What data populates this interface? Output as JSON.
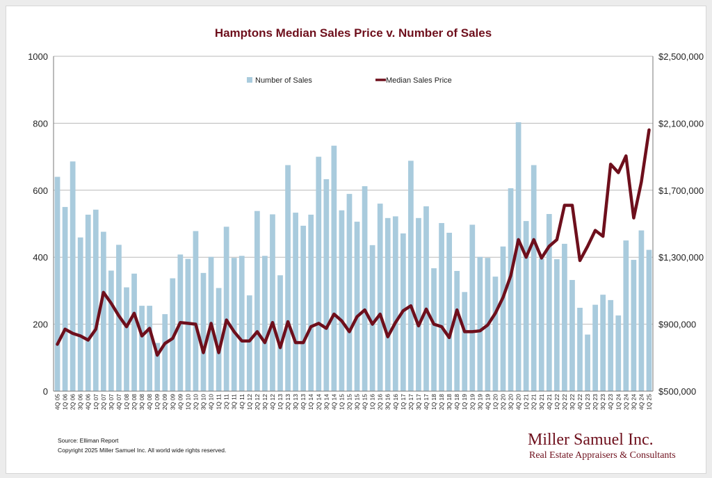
{
  "chart_data": {
    "type": "bar",
    "title": "Hamptons Median Sales Price v. Number of Sales",
    "xlabel": "",
    "ylabel": "",
    "y2label": "",
    "categories": [
      "4Q 05",
      "1Q 06",
      "2Q 06",
      "3Q 06",
      "4Q 06",
      "1Q 07",
      "2Q 07",
      "3Q 07",
      "4Q 07",
      "1Q 08",
      "2Q 08",
      "3Q 08",
      "4Q 08",
      "1Q 09",
      "2Q 09",
      "3Q 09",
      "4Q 09",
      "1Q 10",
      "2Q 10",
      "3Q 10",
      "4Q 10",
      "1Q 11",
      "2Q 11",
      "3Q 11",
      "4Q 11",
      "1Q 12",
      "2Q 12",
      "3Q 12",
      "4Q 12",
      "1Q 13",
      "2Q 13",
      "3Q 13",
      "4Q 13",
      "1Q 14",
      "2Q 14",
      "3Q 14",
      "4Q 14",
      "1Q 15",
      "2Q 15",
      "3Q 15",
      "4Q 15",
      "1Q 16",
      "2Q 16",
      "3Q 16",
      "4Q 16",
      "1Q 17",
      "2Q 17",
      "3Q 17",
      "4Q 17",
      "1Q 18",
      "2Q 18",
      "3Q 18",
      "4Q 18",
      "1Q 19",
      "2Q 19",
      "3Q 19",
      "4Q 19",
      "1Q 20",
      "2Q 20",
      "3Q 20",
      "4Q 20",
      "1Q 21",
      "2Q 21",
      "3Q 21",
      "4Q 21",
      "1Q 22",
      "2Q 22",
      "3Q 22",
      "4Q 22",
      "1Q 23",
      "2Q 23",
      "3Q 23",
      "4Q 23",
      "1Q 24",
      "2Q 24",
      "3Q 24",
      "4Q 24",
      "1Q 25"
    ],
    "series": [
      {
        "name": "Number of Sales",
        "type": "bar",
        "axis": "left",
        "color": "#a9cbdd",
        "values": [
          640,
          550,
          686,
          459,
          527,
          542,
          476,
          360,
          437,
          310,
          351,
          255,
          255,
          144,
          230,
          337,
          408,
          395,
          478,
          353,
          401,
          308,
          491,
          398,
          404,
          286,
          538,
          404,
          528,
          346,
          675,
          533,
          494,
          527,
          700,
          633,
          733,
          540,
          589,
          506,
          612,
          436,
          560,
          517,
          522,
          471,
          688,
          517,
          552,
          367,
          502,
          473,
          359,
          296,
          497,
          401,
          398,
          342,
          432,
          606,
          803,
          508,
          675,
          396,
          529,
          394,
          440,
          332,
          249,
          169,
          258,
          288,
          272,
          226,
          450,
          392,
          480,
          422
        ]
      },
      {
        "name": "Median Sales Price",
        "type": "line",
        "axis": "right",
        "color": "#6e0f1c",
        "values": [
          780000,
          870000,
          845000,
          830000,
          805000,
          870000,
          1090000,
          1025000,
          950000,
          885000,
          965000,
          830000,
          875000,
          715000,
          785000,
          815000,
          910000,
          905000,
          900000,
          730000,
          905000,
          730000,
          925000,
          855000,
          800000,
          800000,
          855000,
          790000,
          910000,
          760000,
          915000,
          790000,
          790000,
          885000,
          905000,
          875000,
          960000,
          920000,
          855000,
          945000,
          985000,
          900000,
          960000,
          825000,
          910000,
          980000,
          1010000,
          890000,
          990000,
          900000,
          885000,
          820000,
          985000,
          855000,
          855000,
          860000,
          895000,
          965000,
          1060000,
          1190000,
          1405000,
          1300000,
          1405000,
          1295000,
          1365000,
          1405000,
          1610000,
          1610000,
          1280000,
          1365000,
          1460000,
          1425000,
          1855000,
          1805000,
          1905000,
          1535000,
          1750000,
          2060000
        ]
      }
    ],
    "y_left": {
      "min": 0,
      "max": 1000,
      "ticks": [
        "0",
        "200",
        "400",
        "600",
        "800",
        "1000"
      ]
    },
    "y_right": {
      "min": 500000,
      "max": 2500000,
      "ticks": [
        "$500,000",
        "$900,000",
        "$1,300,000",
        "$1,700,000",
        "$2,100,000",
        "$2,500,000"
      ]
    },
    "grid": true,
    "legend_position": "top-center"
  },
  "footer": {
    "source": "Source: Elliman Report",
    "copyright": "Copyright 2025 Miller Samuel Inc.  All world wide rights reserved."
  },
  "logo": {
    "name": "Miller Samuel Inc.",
    "tagline": "Real Estate Appraisers & Consultants",
    "color": "#6e0f1c"
  }
}
